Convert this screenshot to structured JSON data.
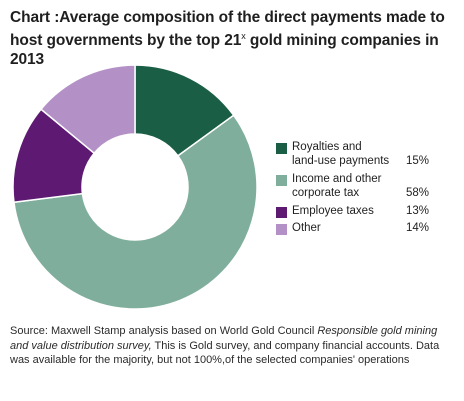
{
  "title": {
    "prefix": "Chart",
    "text": ":Average composition of the direct payments made to host governments by the top 21",
    "superscript": "x",
    "suffix": "gold mining companies in 2013"
  },
  "chart_data": {
    "type": "pie",
    "donut": true,
    "categories": [
      "Royalties and land-use payments",
      "Income and other corporate tax",
      "Employee taxes",
      "Other"
    ],
    "values": [
      15,
      58,
      13,
      14
    ],
    "value_labels": [
      "15%",
      "58%",
      "13%",
      "14%"
    ],
    "colors": [
      "#1a5e45",
      "#7fae9c",
      "#5e1a72",
      "#b391c7"
    ],
    "legend_placement": "right"
  },
  "legend": [
    {
      "line1": "Royalties and",
      "line2": "land-use payments",
      "pct": "15%"
    },
    {
      "line1": "Income and other",
      "line2": "corporate tax",
      "pct": "58%"
    },
    {
      "line1": "Employee taxes",
      "line2": "",
      "pct": "13%"
    },
    {
      "line1": "Other",
      "line2": "",
      "pct": "14%"
    }
  ],
  "source": {
    "part1": "Source: Maxwell Stamp analysis based on World Gold Council ",
    "italic": "Responsible gold mining and value distribution survey,",
    "part2": " This is Gold survey, and company financial accounts. Data was available for the majority, but not 100%,of the selected companies' operations"
  }
}
